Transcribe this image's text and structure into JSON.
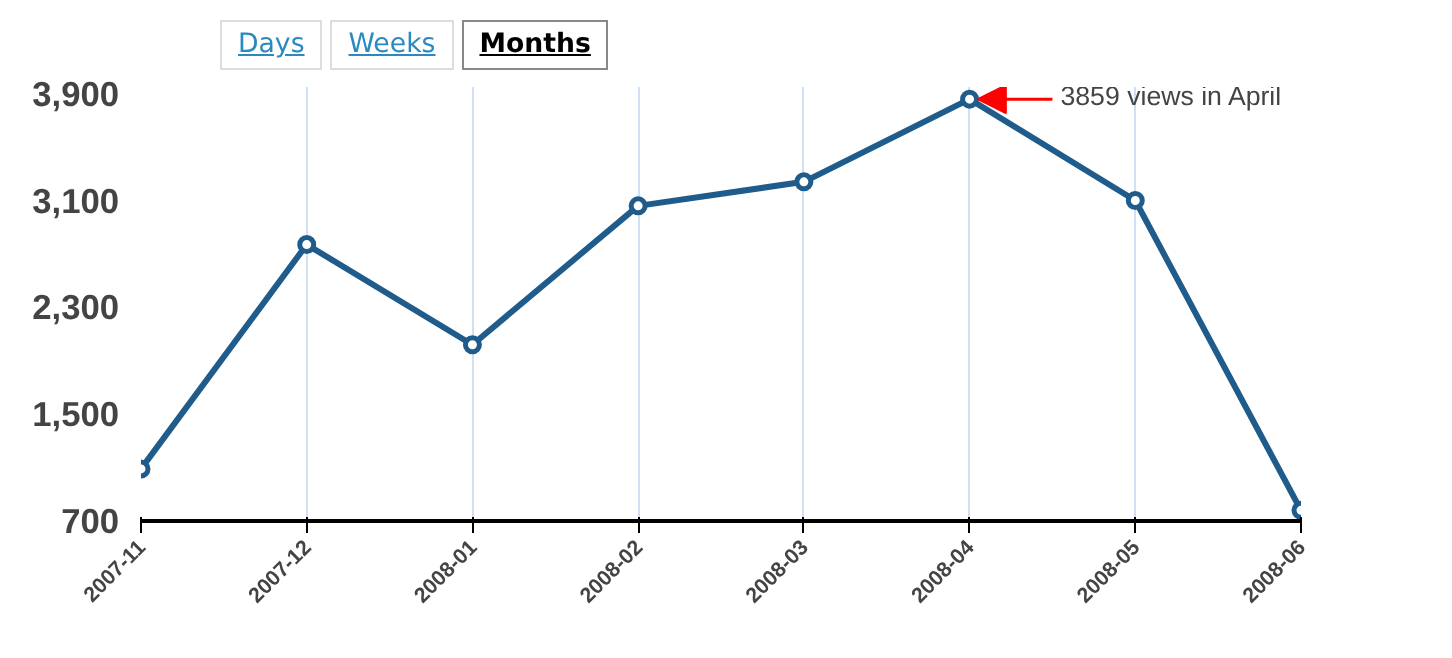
{
  "chart_data": {
    "type": "line",
    "categories": [
      "2007-11",
      "2007-12",
      "2008-01",
      "2008-02",
      "2008-03",
      "2008-04",
      "2008-05",
      "2008-06"
    ],
    "series": [
      {
        "color": "#1f5c8b",
        "values": [
          1090,
          2770,
          2020,
          3060,
          3240,
          3859,
          3100,
          780
        ]
      }
    ],
    "ylim": [
      700,
      3950
    ],
    "yticks": [
      700,
      {
        "value": 1500,
        "label": "1,500"
      },
      {
        "value": 2300,
        "label": "2,300"
      },
      {
        "value": 3100,
        "label": "3,100"
      },
      {
        "value": 3900,
        "label": "3,900"
      }
    ],
    "grid": "x",
    "marker": "circle",
    "line_style": "solid",
    "annotations": [
      "Days",
      "Weeks",
      "Months",
      {
        "text": "3859 views in April",
        "x": "2008-04",
        "y": 3859
      }
    ]
  }
}
